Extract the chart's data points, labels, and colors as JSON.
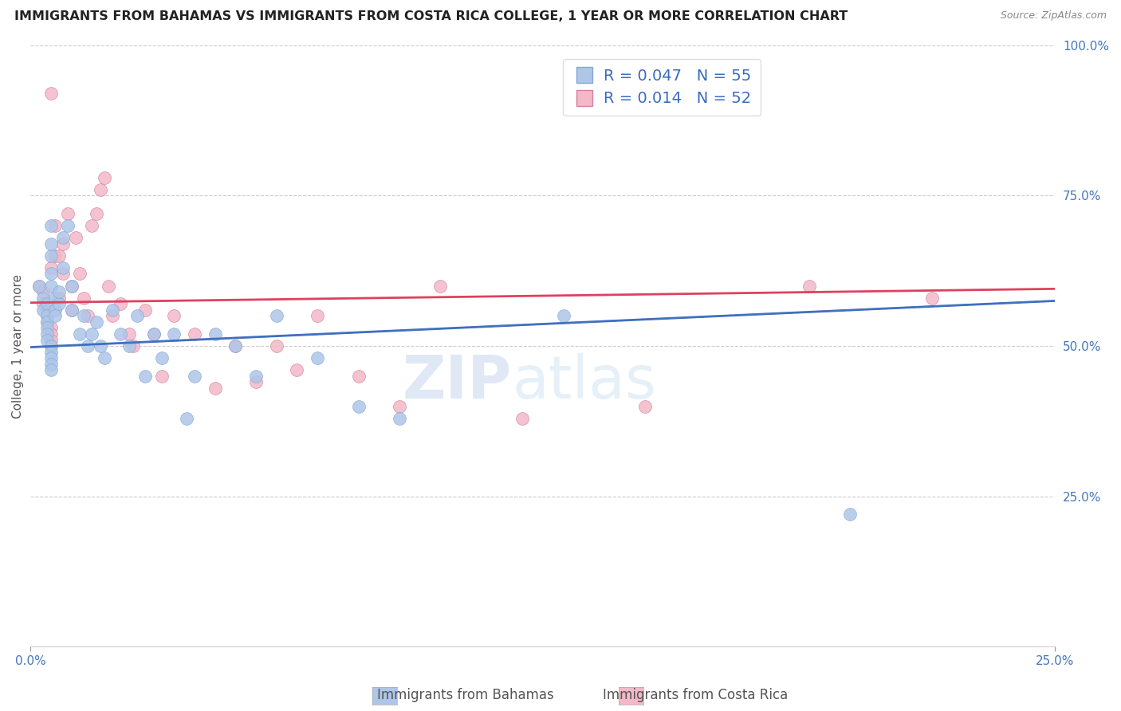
{
  "title": "IMMIGRANTS FROM BAHAMAS VS IMMIGRANTS FROM COSTA RICA COLLEGE, 1 YEAR OR MORE CORRELATION CHART",
  "source": "Source: ZipAtlas.com",
  "ylabel": "College, 1 year or more",
  "legend_label_blue": "Immigrants from Bahamas",
  "legend_label_pink": "Immigrants from Costa Rica",
  "r_blue": "0.047",
  "n_blue": 55,
  "r_pink": "0.014",
  "n_pink": 52,
  "xlim": [
    0.0,
    0.25
  ],
  "ylim": [
    0.0,
    1.0
  ],
  "ytick_positions": [
    0.25,
    0.5,
    0.75,
    1.0
  ],
  "ytick_labels": [
    "25.0%",
    "50.0%",
    "75.0%",
    "100.0%"
  ],
  "xtick_positions": [
    0.0,
    0.25
  ],
  "xtick_labels": [
    "0.0%",
    "25.0%"
  ],
  "color_blue": "#AEC6E8",
  "color_pink": "#F4B8C8",
  "line_color_blue": "#4070c0",
  "line_color_pink": "#e04060",
  "line_color_gray": "#aaaaaa",
  "watermark": "ZIPatlas",
  "blue_x": [
    0.002,
    0.003,
    0.003,
    0.004,
    0.004,
    0.004,
    0.004,
    0.004,
    0.004,
    0.005,
    0.005,
    0.005,
    0.005,
    0.005,
    0.005,
    0.005,
    0.005,
    0.005,
    0.005,
    0.006,
    0.006,
    0.006,
    0.007,
    0.007,
    0.008,
    0.008,
    0.009,
    0.01,
    0.01,
    0.012,
    0.013,
    0.014,
    0.015,
    0.016,
    0.017,
    0.018,
    0.02,
    0.022,
    0.024,
    0.026,
    0.028,
    0.03,
    0.032,
    0.035,
    0.038,
    0.04,
    0.045,
    0.05,
    0.055,
    0.06,
    0.07,
    0.08,
    0.09,
    0.13,
    0.2
  ],
  "blue_y": [
    0.6,
    0.58,
    0.56,
    0.57,
    0.55,
    0.54,
    0.53,
    0.52,
    0.51,
    0.5,
    0.49,
    0.48,
    0.47,
    0.46,
    0.6,
    0.62,
    0.65,
    0.67,
    0.7,
    0.58,
    0.56,
    0.55,
    0.57,
    0.59,
    0.63,
    0.68,
    0.7,
    0.6,
    0.56,
    0.52,
    0.55,
    0.5,
    0.52,
    0.54,
    0.5,
    0.48,
    0.56,
    0.52,
    0.5,
    0.55,
    0.45,
    0.52,
    0.48,
    0.52,
    0.38,
    0.45,
    0.52,
    0.5,
    0.45,
    0.55,
    0.48,
    0.4,
    0.38,
    0.55,
    0.22
  ],
  "pink_x": [
    0.002,
    0.003,
    0.003,
    0.004,
    0.004,
    0.004,
    0.005,
    0.005,
    0.005,
    0.005,
    0.005,
    0.005,
    0.006,
    0.006,
    0.007,
    0.007,
    0.008,
    0.008,
    0.009,
    0.01,
    0.01,
    0.011,
    0.012,
    0.013,
    0.014,
    0.015,
    0.016,
    0.017,
    0.018,
    0.019,
    0.02,
    0.022,
    0.024,
    0.025,
    0.028,
    0.03,
    0.032,
    0.035,
    0.04,
    0.045,
    0.05,
    0.055,
    0.06,
    0.065,
    0.07,
    0.08,
    0.09,
    0.1,
    0.12,
    0.15,
    0.19,
    0.22
  ],
  "pink_y": [
    0.6,
    0.59,
    0.57,
    0.56,
    0.55,
    0.54,
    0.53,
    0.52,
    0.51,
    0.5,
    0.92,
    0.63,
    0.65,
    0.7,
    0.65,
    0.58,
    0.62,
    0.67,
    0.72,
    0.6,
    0.56,
    0.68,
    0.62,
    0.58,
    0.55,
    0.7,
    0.72,
    0.76,
    0.78,
    0.6,
    0.55,
    0.57,
    0.52,
    0.5,
    0.56,
    0.52,
    0.45,
    0.55,
    0.52,
    0.43,
    0.5,
    0.44,
    0.5,
    0.46,
    0.55,
    0.45,
    0.4,
    0.6,
    0.38,
    0.4,
    0.6,
    0.58
  ],
  "blue_line_x0": 0.0,
  "blue_line_y0": 0.498,
  "blue_line_x1": 0.25,
  "blue_line_y1": 0.575,
  "pink_line_x0": 0.0,
  "pink_line_y0": 0.572,
  "pink_line_x1": 0.25,
  "pink_line_y1": 0.595
}
